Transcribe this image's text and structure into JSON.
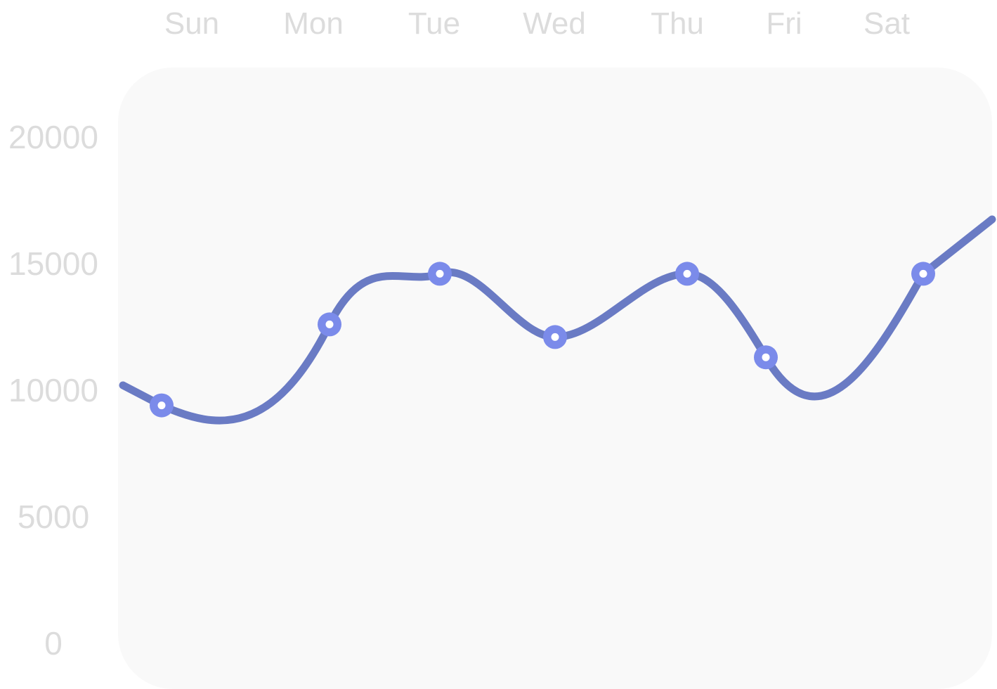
{
  "chart_data": {
    "type": "line",
    "categories": [
      "Sun",
      "Mon",
      "Tue",
      "Wed",
      "Thu",
      "Fri",
      "Sat"
    ],
    "series": [
      {
        "values": [
          9400,
          12600,
          14600,
          12100,
          14600,
          11300,
          14600
        ]
      }
    ],
    "y_ticks": [
      "0",
      "5000",
      "10000",
      "15000",
      "20000"
    ],
    "ylim": [
      0,
      20000
    ],
    "x_axis_position": "top",
    "grid": false,
    "legend": "none",
    "colors": {
      "line": "#6a7bc4",
      "marker": "#7b8bea",
      "marker_center": "#ffffff",
      "plot_background": "#f9f9f9",
      "tick_text": "#dcdcdc"
    }
  }
}
